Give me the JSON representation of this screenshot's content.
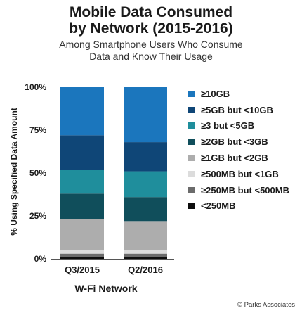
{
  "chart_data": {
    "type": "bar",
    "stacked": true,
    "title_lines": [
      "Mobile Data Consumed",
      "by Network (2015-2016)"
    ],
    "subtitle_lines": [
      "Among Smartphone Users Who Consume",
      "Data and Know Their Usage"
    ],
    "ylabel": "% Using Specified Data Amount",
    "xlabel": "W-Fi Network",
    "source": "© Parks Associates",
    "categories": [
      "Q3/2015",
      "Q2/2016"
    ],
    "y_ticks": [
      "0%",
      "25%",
      "50%",
      "75%",
      "100%"
    ],
    "ylim": [
      0,
      100
    ],
    "grid": false,
    "legend_position": "right",
    "series": [
      {
        "name": "<250MB",
        "color": "#0d0d0d",
        "values": [
          1,
          1
        ]
      },
      {
        "name": "≥250MB but <500MB",
        "color": "#6b6b6b",
        "values": [
          2,
          2
        ]
      },
      {
        "name": "≥500MB but <1GB",
        "color": "#dcdcdc",
        "values": [
          2,
          2
        ]
      },
      {
        "name": "≥1GB but <2GB",
        "color": "#adadad",
        "values": [
          18,
          17
        ]
      },
      {
        "name": "≥2GB but <3GB",
        "color": "#104e5b",
        "values": [
          15,
          14
        ]
      },
      {
        "name": "≥3 but <5GB",
        "color": "#1f8e9c",
        "values": [
          14,
          15
        ]
      },
      {
        "name": "≥5GB but <10GB",
        "color": "#0f4677",
        "values": [
          20,
          17
        ]
      },
      {
        "name": "≥10GB",
        "color": "#1b76bd",
        "values": [
          28,
          32
        ]
      }
    ]
  }
}
